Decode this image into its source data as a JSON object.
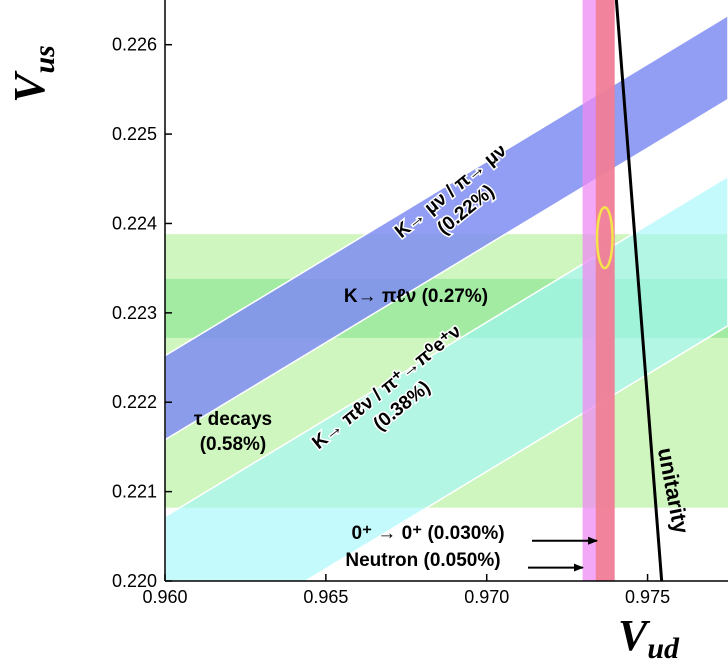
{
  "chart_data": {
    "type": "band-constraints",
    "xlabel_main": "V",
    "xlabel_sub": "ud",
    "ylabel_main": "V",
    "ylabel_sub": "us",
    "xlim": [
      0.96,
      0.9775
    ],
    "ylim": [
      0.22,
      0.2265
    ],
    "xticks": [
      0.96,
      0.965,
      0.97,
      0.975
    ],
    "xtick_labels": [
      "0.960",
      "0.965",
      "0.970",
      "0.975"
    ],
    "yticks": [
      0.22,
      0.221,
      0.222,
      0.223,
      0.224,
      0.225,
      0.226
    ],
    "ytick_labels": [
      "0.220",
      "0.221",
      "0.222",
      "0.223",
      "0.224",
      "0.225",
      "0.226"
    ],
    "colors": {
      "kmu": "#7f8cf2",
      "kpi": "#a6f4e8",
      "kpi_top": "#9ef7fb",
      "tau": "#c8f5b4",
      "tau_dark": "#a2ee98",
      "kl3": "#9be99d",
      "neutron": "#ee8bf3",
      "superallowed": "#f07a86",
      "ellipse": "#f5e44a",
      "unitarity": "#000000"
    },
    "bands": [
      {
        "key": "kmu",
        "label_line1": "K→ μν / π→ μν",
        "label_line2": "(0.22%)",
        "kind": "diagonal",
        "x_at_start": 0.96,
        "y_low_start": 0.22158,
        "y_high_start": 0.22252,
        "slope": 0.2175
      },
      {
        "key": "kpi",
        "label_line1": "K→ πℓν / π⁺→π⁰e⁺ν",
        "label_line2": "(0.38%)",
        "kind": "diagonal",
        "x_at_start": 0.96,
        "y_low_start": 0.21905,
        "y_high_start": 0.22072,
        "slope": 0.2175
      },
      {
        "key": "tau",
        "label_line1": "τ decays",
        "label_line2": "(0.58%)",
        "kind": "horizontal",
        "y_low": 0.22082,
        "y_high": 0.22388
      },
      {
        "key": "kl3",
        "label_line1": "K→ πℓν (0.27%)",
        "kind": "horizontal",
        "y_low": 0.22272,
        "y_high": 0.22338
      },
      {
        "key": "neutron",
        "label": "Neutron (0.050%)",
        "kind": "vertical",
        "x_low": 0.97298,
        "x_high": 0.97396
      },
      {
        "key": "superallowed",
        "label": "0⁺ → 0⁺ (0.030%)",
        "kind": "vertical",
        "x_low": 0.97339,
        "x_high": 0.97398
      }
    ],
    "ellipse": {
      "cx": 0.97367,
      "cy": 0.22384,
      "rx": 0.00024,
      "ry": 0.00034
    },
    "unitarity": {
      "label": "unitarity",
      "points": [
        [
          0.97403,
          0.2265
        ],
        [
          0.97546,
          0.2199
        ]
      ]
    },
    "arrows": [
      {
        "label_key": "superallowed",
        "x_end": 0.97343,
        "y": 0.22045
      },
      {
        "label_key": "neutron",
        "x_end": 0.97299,
        "y": 0.22015
      }
    ]
  }
}
